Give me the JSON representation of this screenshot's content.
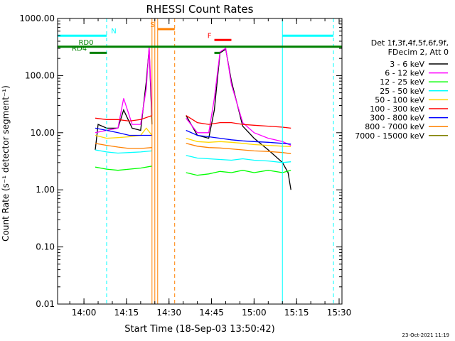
{
  "chart_data": {
    "type": "line",
    "title": "RHESSI Count Rates",
    "xlabel": "Start Time (18-Sep-03 13:50:42)",
    "ylabel": "Count Rate (s⁻¹ detector segment⁻¹)",
    "y_scale": "log",
    "ylim": [
      0.01,
      1000
    ],
    "xlim": [
      "13:50:42",
      "15:31:00"
    ],
    "x_ticks": [
      "14:00",
      "14:15",
      "14:30",
      "14:45",
      "15:00",
      "15:15",
      "15:30"
    ],
    "y_ticks": [
      "1000.00",
      "100.00",
      "10.00",
      "1.00",
      "0.10",
      "0.01"
    ],
    "legend_header": [
      "Det 1f,3f,4f,5f,6f,9f,",
      "FDecim 2, Att 0"
    ],
    "legend_position": "right",
    "timestamp": "23-Oct-2021 11:19",
    "series": [
      {
        "name": "3 - 6 keV",
        "color": "#000000",
        "x": [
          "14:04",
          "14:05",
          "14:08",
          "14:12",
          "14:14",
          "14:17",
          "14:20",
          "14:22",
          "14:23",
          "14:24",
          "14:26",
          "14:32",
          "14:36",
          "14:40",
          "14:44",
          "14:46",
          "14:48",
          "14:50",
          "14:52",
          "14:56",
          "15:00",
          "15:05",
          "15:10",
          "15:12",
          "15:13"
        ],
        "values": [
          5,
          14,
          12,
          12,
          25,
          12,
          11,
          80,
          300,
          14,
          null,
          null,
          20,
          9,
          8,
          25,
          250,
          290,
          80,
          13,
          8,
          5,
          3,
          2,
          1
        ]
      },
      {
        "name": "6 - 12 keV",
        "color": "#ff00ff",
        "x": [
          "14:04",
          "14:08",
          "14:12",
          "14:14",
          "14:17",
          "14:20",
          "14:22",
          "14:23",
          "14:24",
          "14:26",
          "14:32",
          "14:36",
          "14:40",
          "14:44",
          "14:46",
          "14:48",
          "14:50",
          "14:52",
          "14:56",
          "15:00",
          "15:05",
          "15:10",
          "15:13"
        ],
        "values": [
          10,
          11,
          12,
          40,
          14,
          14,
          60,
          330,
          20,
          null,
          null,
          18,
          10,
          10,
          40,
          260,
          300,
          70,
          15,
          10,
          8,
          7,
          6
        ]
      },
      {
        "name": "12 - 25 keV",
        "color": "#00ff00",
        "x": [
          "14:04",
          "14:08",
          "14:12",
          "14:16",
          "14:20",
          "14:24",
          "14:26",
          "14:32",
          "14:36",
          "14:40",
          "14:44",
          "14:48",
          "14:52",
          "14:56",
          "15:00",
          "15:05",
          "15:10",
          "15:13"
        ],
        "values": [
          2.5,
          2.3,
          2.2,
          2.3,
          2.4,
          2.6,
          null,
          null,
          2,
          1.8,
          1.9,
          2.1,
          2.0,
          2.2,
          2.0,
          2.2,
          2.0,
          2.2
        ]
      },
      {
        "name": "25 - 50 keV",
        "color": "#00ffff",
        "x": [
          "14:04",
          "14:08",
          "14:12",
          "14:16",
          "14:20",
          "14:24",
          "14:26",
          "14:32",
          "14:36",
          "14:40",
          "14:44",
          "14:48",
          "14:52",
          "14:56",
          "15:00",
          "15:05",
          "15:10",
          "15:13"
        ],
        "values": [
          5,
          4.6,
          4.4,
          4.5,
          4.6,
          4.8,
          null,
          null,
          4,
          3.6,
          3.5,
          3.4,
          3.3,
          3.5,
          3.3,
          3.2,
          3.0,
          3.1
        ]
      },
      {
        "name": "50 - 100 keV",
        "color": "#ffd700",
        "x": [
          "14:04",
          "14:08",
          "14:12",
          "14:16",
          "14:20",
          "14:22",
          "14:24",
          "14:26",
          "14:32",
          "14:36",
          "14:40",
          "14:44",
          "14:48",
          "14:52",
          "14:56",
          "15:00",
          "15:05",
          "15:10",
          "15:13"
        ],
        "values": [
          9,
          8,
          8.2,
          8.5,
          9,
          12,
          9,
          null,
          null,
          8,
          7,
          6.8,
          7,
          6.8,
          6.5,
          6.2,
          6.0,
          5.8,
          5.7
        ]
      },
      {
        "name": "100 - 300 keV",
        "color": "#ff0000",
        "x": [
          "14:04",
          "14:08",
          "14:12",
          "14:16",
          "14:20",
          "14:24",
          "14:26",
          "14:32",
          "14:36",
          "14:40",
          "14:44",
          "14:48",
          "14:52",
          "14:56",
          "15:00",
          "15:05",
          "15:10",
          "15:13"
        ],
        "values": [
          18,
          17,
          17,
          16,
          17,
          20,
          null,
          null,
          20,
          15,
          14,
          15,
          15,
          14,
          13.5,
          13,
          12.5,
          12
        ]
      },
      {
        "name": "300 - 800 keV",
        "color": "#0000ff",
        "x": [
          "14:04",
          "14:08",
          "14:12",
          "14:16",
          "14:20",
          "14:24",
          "14:26",
          "14:32",
          "14:36",
          "14:40",
          "14:44",
          "14:48",
          "14:52",
          "14:56",
          "15:00",
          "15:05",
          "15:10",
          "15:13"
        ],
        "values": [
          12,
          11,
          10,
          9,
          9,
          9,
          null,
          null,
          11,
          9,
          8.5,
          8,
          7.5,
          7.2,
          7,
          6.8,
          6.5,
          6.3
        ]
      },
      {
        "name": "800 - 7000 keV",
        "color": "#ff8000",
        "x": [
          "14:04",
          "14:08",
          "14:12",
          "14:16",
          "14:20",
          "14:24",
          "14:26",
          "14:32",
          "14:36",
          "14:40",
          "14:44",
          "14:48",
          "14:52",
          "14:56",
          "15:00",
          "15:05",
          "15:10",
          "15:13"
        ],
        "values": [
          6.5,
          6,
          5.6,
          5.3,
          5.3,
          5.5,
          null,
          null,
          6.5,
          5.8,
          5.5,
          5.4,
          5.2,
          5.0,
          4.8,
          4.7,
          4.5,
          4.3
        ]
      },
      {
        "name": "7000 - 15000 keV",
        "color": "#808000",
        "x": [],
        "values": []
      }
    ],
    "annotations": [
      {
        "label": "N",
        "color": "#00ffff",
        "x": [
          "13:50:42",
          "14:08"
        ],
        "y": 500
      },
      {
        "label": "N",
        "color": "#00ffff",
        "x": [
          "15:10",
          "15:28"
        ],
        "y": 500,
        "show_label": false
      },
      {
        "label": "S",
        "color": "#ff8000",
        "x": [
          "14:26",
          "14:32"
        ],
        "y": 650
      },
      {
        "label": "F",
        "color": "#ff0000",
        "x": [
          "14:46",
          "14:52"
        ],
        "y": 420
      },
      {
        "label": "RD0",
        "color": "#008000",
        "x": [
          "13:50:42",
          "15:31"
        ],
        "y": 320
      },
      {
        "label": "RD4",
        "color": "#008000",
        "x": [
          "14:02",
          "14:08"
        ],
        "y": 250
      },
      {
        "label": "RD4",
        "color": "#008000",
        "x": [
          "14:46",
          "14:48"
        ],
        "y": 250,
        "show_label": false
      }
    ],
    "vertical_lines": [
      {
        "x": "13:50:42",
        "color": "#00ffff",
        "style": "solid"
      },
      {
        "x": "14:08",
        "color": "#00ffff",
        "style": "dashed"
      },
      {
        "x": "14:24",
        "color": "#ff8000",
        "style": "solid"
      },
      {
        "x": "14:25",
        "color": "#ff8000",
        "style": "solid"
      },
      {
        "x": "14:26",
        "color": "#ff8000",
        "style": "solid"
      },
      {
        "x": "14:32",
        "color": "#ff8000",
        "style": "dashed"
      },
      {
        "x": "15:10",
        "color": "#00ffff",
        "style": "solid"
      },
      {
        "x": "15:28",
        "color": "#00ffff",
        "style": "dashed"
      }
    ]
  }
}
